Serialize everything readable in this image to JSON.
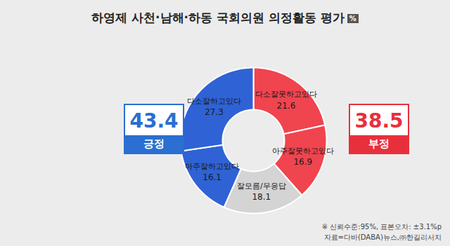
{
  "chart_data": {
    "type": "donut",
    "title": "하영제 사천·남해·하동 국회의원 의정활동 평가",
    "unit": "%",
    "categories": [
      "다소잘못하고있다",
      "아주잘못하고있다",
      "잘모름/무응답",
      "아주잘하고있다",
      "다소잘하고있다"
    ],
    "values": [
      21.6,
      16.9,
      18.1,
      16.1,
      27.3
    ],
    "colors": [
      "#f0444f",
      "#f0444f",
      "#d4d4d4",
      "#2f62d4",
      "#2f62d4"
    ],
    "data_labels": true,
    "summary": [
      {
        "label": "긍정",
        "value": 43.4,
        "color": "#2a6fd1"
      },
      {
        "label": "부정",
        "value": 38.5,
        "color": "#e8303c"
      }
    ],
    "notes": [
      "※ 신뢰수준:95%, 표본오차: ±3.1%p",
      "자료=다바(DABA)뉴스,㈜한길리서치"
    ]
  }
}
